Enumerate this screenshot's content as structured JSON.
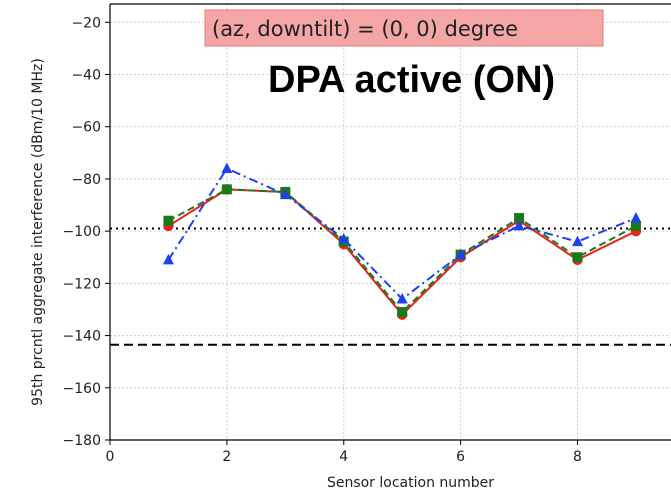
{
  "chart_data": {
    "type": "line",
    "xlabel": "Sensor location number",
    "ylabel": "95th prcntl aggregate interference (dBm/10 MHz)",
    "xlim": [
      0,
      9.6
    ],
    "ylim": [
      -180,
      -13
    ],
    "xticks": [
      0,
      2,
      4,
      6,
      8
    ],
    "yticks": [
      -180,
      -160,
      -140,
      -120,
      -100,
      -80,
      -60,
      -40,
      -20
    ],
    "xtick_labels": [
      "0",
      "2",
      "4",
      "6",
      "8"
    ],
    "ytick_labels": [
      "−180",
      "−160",
      "−140",
      "−120",
      "−100",
      "−80",
      "−60",
      "−40",
      "−20"
    ],
    "grid": true,
    "x": [
      1,
      2,
      3,
      4,
      5,
      6,
      7,
      8,
      9
    ],
    "series": [
      {
        "color": "#e8231b",
        "linestyle": "solid",
        "marker": "circle",
        "values": [
          -98,
          -84,
          -85,
          -105,
          -132,
          -110,
          -96,
          -111,
          -100
        ]
      },
      {
        "color": "#1a7a1a",
        "linestyle": "dashed",
        "marker": "square",
        "values": [
          -96,
          -84,
          -85,
          -104,
          -131,
          -109,
          -95,
          -110,
          -98
        ]
      },
      {
        "color": "#1f3ff0",
        "linestyle": "dashdot",
        "marker": "triangle",
        "values": [
          -111,
          -76,
          -86,
          -103,
          -126,
          -109,
          -98,
          -104,
          -95
        ]
      }
    ],
    "reference_lines": [
      {
        "y": -99,
        "style": "dotted",
        "color": "#000000"
      },
      {
        "y": -143.5,
        "style": "dashed",
        "color": "#000000"
      }
    ],
    "annotations": {
      "box_text": "(az, downtilt) = (0, 0) degree",
      "box_color": "#f4a6a6",
      "big_text": "DPA active (ON)"
    }
  }
}
